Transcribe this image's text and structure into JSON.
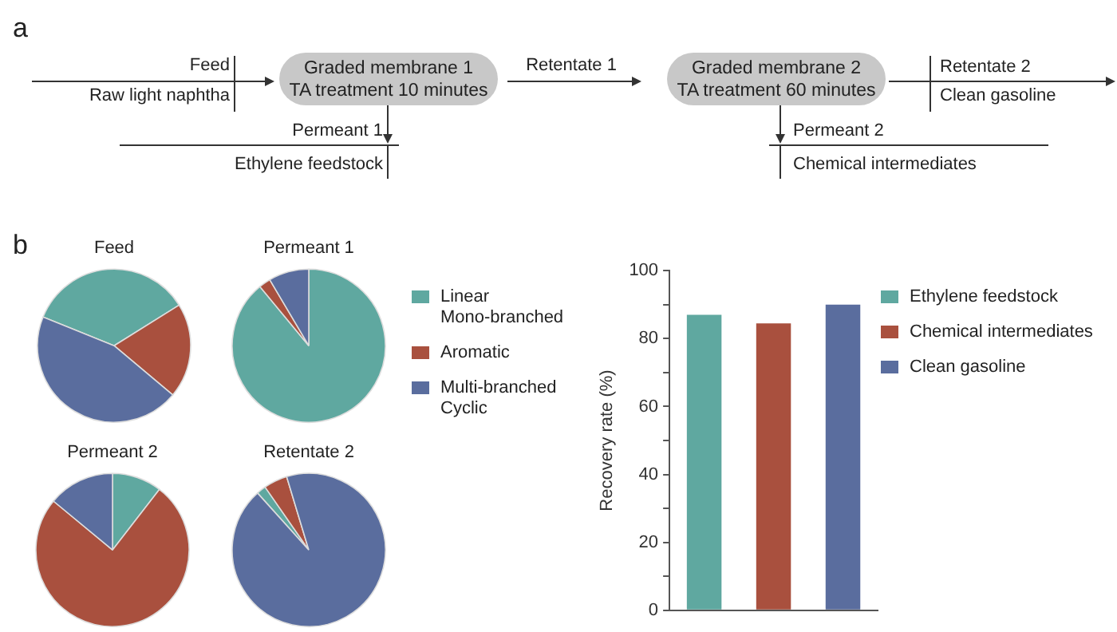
{
  "chart_data": [
    {
      "type": "other",
      "annotations": [
        "a",
        "Feed",
        "Raw light naphtha",
        "Graded membrane 1",
        "TA treatment 10 minutes",
        "Retentate 1",
        "Graded membrane 2",
        "TA treatment 60 minutes",
        "Retentate 2",
        "Clean gasoline",
        "Permeant 1",
        "Ethylene feedstock",
        "Permeant 2",
        "Chemical intermediates",
        "b"
      ]
    },
    {
      "type": "pie",
      "title": "Feed",
      "values": [
        35,
        20,
        45
      ],
      "colors": [
        "#5fa8a0",
        "#a9503e",
        "#5a6d9e"
      ]
    },
    {
      "type": "pie",
      "title": "Permeant 1",
      "categories": [
        "Linear Mono-branched",
        "Aromatic",
        "Multi-branched Cyclic"
      ],
      "values": [
        89,
        2.5,
        8.5
      ],
      "colors": [
        "#5fa8a0",
        "#a9503e",
        "#5a6d9e"
      ],
      "legend": "right"
    },
    {
      "type": "pie",
      "title": "Permeant 2",
      "values": [
        10.5,
        75.5,
        14
      ],
      "colors": [
        "#5fa8a0",
        "#a9503e",
        "#5a6d9e"
      ]
    },
    {
      "type": "pie",
      "title": "Retentate 2",
      "values": [
        2,
        5,
        93
      ],
      "colors": [
        "#5fa8a0",
        "#a9503e",
        "#5a6d9e"
      ]
    },
    {
      "type": "bar",
      "categories": [
        null,
        null,
        null
      ],
      "ylabel": "Recovery rate (%)",
      "ylim": [
        0,
        100
      ],
      "yticks": [
        0,
        {
          "value": 10,
          "label": null
        },
        20,
        {
          "value": 30,
          "label": null
        },
        40,
        {
          "value": 50,
          "label": null
        },
        60,
        {
          "value": 70,
          "label": null
        },
        80,
        {
          "value": 90,
          "label": null
        },
        100
      ],
      "legend": "right",
      "series": [
        {
          "name": "Ethylene feedstock",
          "color": "#5fa8a0",
          "values": [
            87,
            null,
            null
          ]
        },
        {
          "name": "Chemical intermediates",
          "color": "#a9503e",
          "values": [
            null,
            84.5,
            null
          ]
        },
        {
          "name": "Clean gasoline",
          "color": "#5a6d9e",
          "values": [
            null,
            null,
            90
          ]
        }
      ]
    }
  ]
}
